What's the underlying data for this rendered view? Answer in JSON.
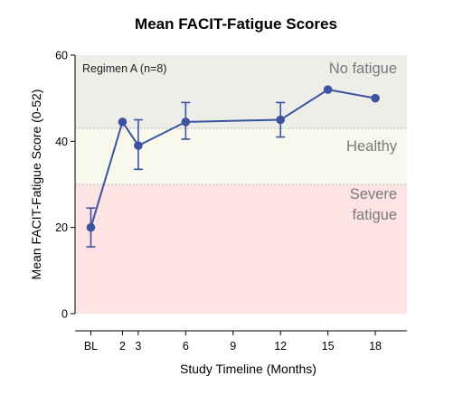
{
  "chart_data": {
    "type": "line",
    "title": "Mean FACIT-Fatigue Scores",
    "xlabel": "Study Timeline (Months)",
    "ylabel": "Mean FACIT-Fatigue Score (0-52)",
    "annotation": "Regimen  A (n=8)",
    "xlim": [
      -1,
      20
    ],
    "ylim": [
      0,
      60
    ],
    "x_ticks": [
      {
        "value": 0,
        "label": "BL"
      },
      {
        "value": 2,
        "label": "2"
      },
      {
        "value": 3,
        "label": "3"
      },
      {
        "value": 6,
        "label": "6"
      },
      {
        "value": 9,
        "label": "9"
      },
      {
        "value": 12,
        "label": "12"
      },
      {
        "value": 15,
        "label": "15"
      },
      {
        "value": 18,
        "label": "18"
      }
    ],
    "y_ticks": [
      0,
      20,
      40,
      60
    ],
    "zones": [
      {
        "label": "Severe fatigue",
        "lines": [
          "Severe",
          "fatigue"
        ],
        "from": 0,
        "to": 30,
        "color": "#fde3e3"
      },
      {
        "label": "Healthy",
        "lines": [
          "Healthy"
        ],
        "from": 30,
        "to": 43,
        "color": "#f8f9ec"
      },
      {
        "label": "No fatigue",
        "lines": [
          "No fatigue"
        ],
        "from": 43,
        "to": 60,
        "color": "#ededea"
      }
    ],
    "series": [
      {
        "color": "#3d53a0",
        "points": [
          {
            "x": 0,
            "y": 20,
            "err_low": 15.5,
            "err_high": 24.5
          },
          {
            "x": 2,
            "y": 44.5,
            "err_low": 44.5,
            "err_high": 44.5
          },
          {
            "x": 3,
            "y": 39,
            "err_low": 33.5,
            "err_high": 45
          },
          {
            "x": 6,
            "y": 44.5,
            "err_low": 40.5,
            "err_high": 49
          },
          {
            "x": 12,
            "y": 45,
            "err_low": 41,
            "err_high": 49
          },
          {
            "x": 15,
            "y": 52,
            "err_low": 52,
            "err_high": 52
          },
          {
            "x": 18,
            "y": 50,
            "err_low": 50,
            "err_high": 50
          }
        ]
      }
    ]
  }
}
